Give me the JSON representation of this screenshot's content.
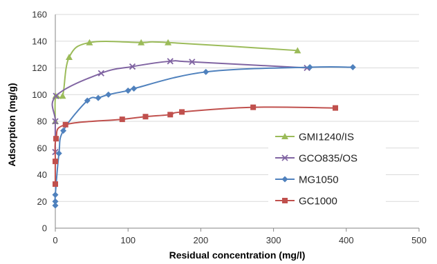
{
  "chart_data": {
    "type": "line",
    "title": "",
    "xlabel": "Residual concentration (mg/l)",
    "ylabel": "Adsorption (mg/g)",
    "xlim": [
      0,
      500
    ],
    "ylim": [
      0,
      160
    ],
    "xticks": [
      0,
      100,
      200,
      300,
      400,
      500
    ],
    "yticks": [
      0,
      20,
      40,
      60,
      80,
      100,
      120,
      140,
      160
    ],
    "grid": "horizontal",
    "legend_position": "center-right",
    "series": [
      {
        "name": "GMI1240/IS",
        "color": "#9bbb59",
        "marker": "triangle",
        "points": [
          [
            0,
            80
          ],
          [
            0.5,
            99
          ],
          [
            10,
            99
          ],
          [
            19,
            128
          ],
          [
            47,
            139
          ],
          [
            118,
            139
          ],
          [
            155,
            139
          ],
          [
            333,
            133
          ]
        ]
      },
      {
        "name": "GCO835/OS",
        "color": "#8064a2",
        "marker": "x",
        "points": [
          [
            0,
            57
          ],
          [
            0,
            80
          ],
          [
            1,
            99
          ],
          [
            63,
            116
          ],
          [
            106,
            121
          ],
          [
            158,
            125
          ],
          [
            188,
            124.5
          ],
          [
            346,
            120
          ]
        ]
      },
      {
        "name": "MG1050",
        "color": "#4f81bd",
        "marker": "diamond",
        "points": [
          [
            0,
            17
          ],
          [
            0,
            20
          ],
          [
            0,
            25
          ],
          [
            5,
            56
          ],
          [
            11,
            73
          ],
          [
            44,
            95.5
          ],
          [
            59,
            97.5
          ],
          [
            73,
            100
          ],
          [
            100,
            103
          ],
          [
            108,
            104.5
          ],
          [
            207,
            117
          ],
          [
            350,
            120.5
          ],
          [
            409,
            120.5
          ]
        ]
      },
      {
        "name": "GC1000",
        "color": "#c0504d",
        "marker": "square",
        "points": [
          [
            0,
            33
          ],
          [
            0,
            50
          ],
          [
            1,
            67
          ],
          [
            14,
            77.5
          ],
          [
            92,
            81.5
          ],
          [
            124,
            83.5
          ],
          [
            158,
            85
          ],
          [
            174,
            87
          ],
          [
            272,
            90.5
          ],
          [
            385,
            90
          ]
        ]
      }
    ]
  }
}
